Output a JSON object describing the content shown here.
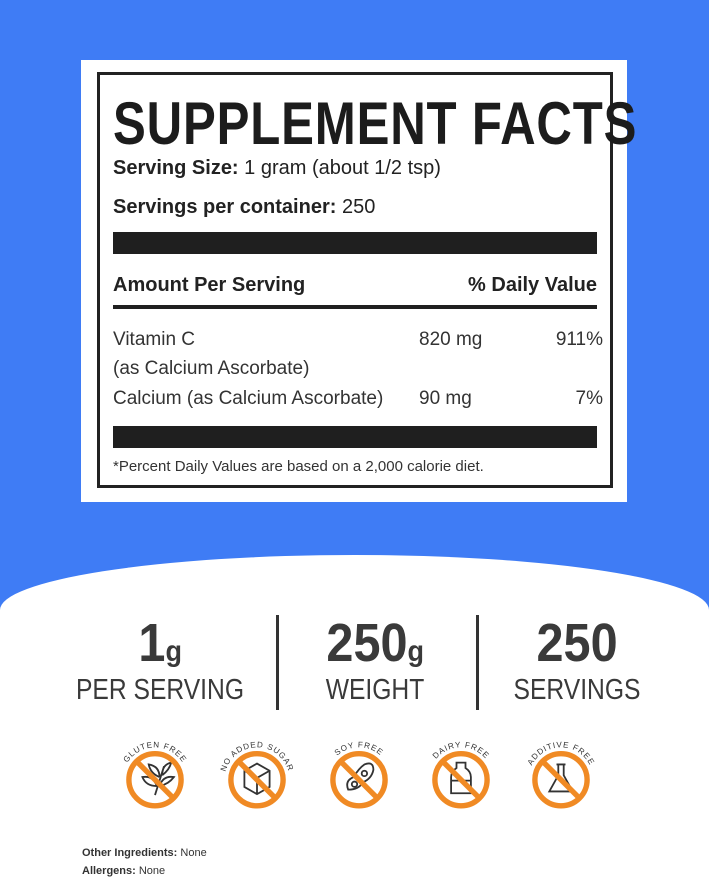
{
  "colors": {
    "background_blue": "#3f7cf5",
    "badge_orange": "#f08a24",
    "text_dark": "#222222"
  },
  "facts": {
    "title": "SUPPLEMENT FACTS",
    "serving_size_label": "Serving Size:",
    "serving_size_value": "1 gram (about 1/2 tsp)",
    "servings_label": "Servings per container:",
    "servings_value": "250",
    "amount_header": "Amount Per Serving",
    "dv_header": "% Daily Value",
    "nutrients": [
      {
        "name": "Vitamin C",
        "sub": "(as Calcium Ascorbate)",
        "amount": "820 mg",
        "dv": "911%"
      },
      {
        "name": "Calcium (as Calcium Ascorbate)",
        "amount": "90 mg",
        "dv": "7%"
      }
    ],
    "footnote": "*Percent Daily Values are based on a 2,000 calorie diet."
  },
  "stats": [
    {
      "value": "1",
      "unit": "g",
      "label": "PER SERVING"
    },
    {
      "value": "250",
      "unit": "g",
      "label": "WEIGHT"
    },
    {
      "value": "250",
      "unit": "",
      "label": "SERVINGS"
    }
  ],
  "badges": [
    {
      "label": "GLUTEN FREE",
      "icon": "wheat-icon"
    },
    {
      "label": "NO ADDED SUGAR",
      "icon": "sugar-cube-icon"
    },
    {
      "label": "SOY FREE",
      "icon": "soybean-icon"
    },
    {
      "label": "DAIRY FREE",
      "icon": "milk-bottle-icon"
    },
    {
      "label": "ADDITIVE FREE",
      "icon": "flask-icon"
    }
  ],
  "other": {
    "ingredients_label": "Other Ingredients:",
    "ingredients_value": "None",
    "allergens_label": "Allergens:",
    "allergens_value": "None"
  }
}
